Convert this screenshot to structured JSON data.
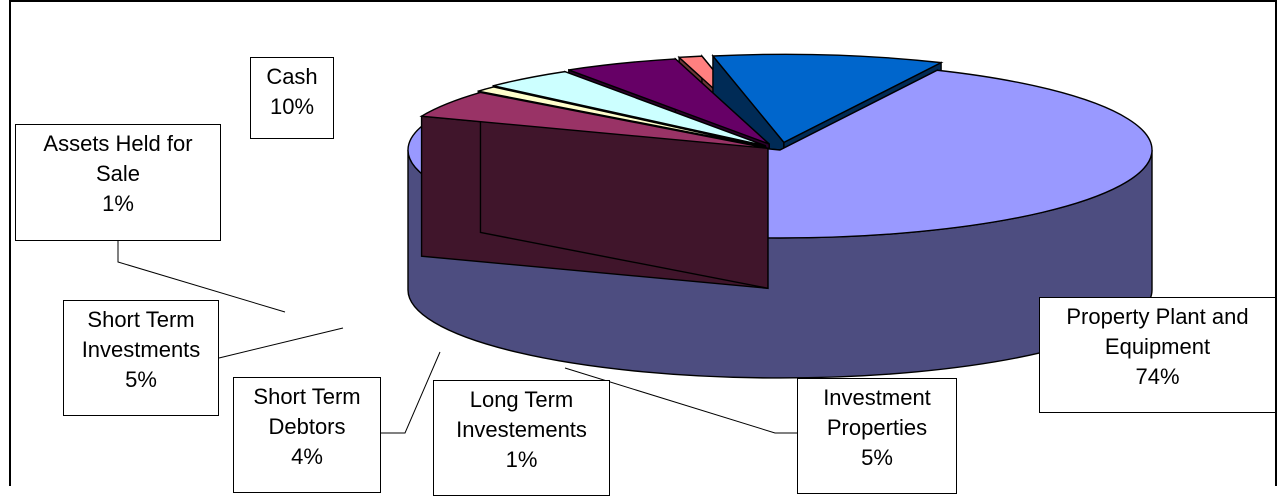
{
  "chart_data": {
    "type": "pie",
    "title": "",
    "slices": [
      {
        "key": "ppe",
        "name_lines": [
          "Property Plant and",
          "Equipment"
        ],
        "pct_label": "74%",
        "value": 74,
        "color": "#9999ff"
      },
      {
        "key": "investment_properties",
        "name_lines": [
          "Investment",
          "Properties"
        ],
        "pct_label": "5%",
        "value": 5,
        "color": "#993366"
      },
      {
        "key": "long_term_investments",
        "name_lines": [
          "Long Term",
          "Investements"
        ],
        "pct_label": "1%",
        "value": 1,
        "color": "#ffffcc"
      },
      {
        "key": "short_term_debtors",
        "name_lines": [
          "Short Term",
          "Debtors"
        ],
        "pct_label": "4%",
        "value": 4,
        "color": "#ccffff"
      },
      {
        "key": "short_term_investments",
        "name_lines": [
          "Short Term",
          "Investments"
        ],
        "pct_label": "5%",
        "value": 5,
        "color": "#660066"
      },
      {
        "key": "assets_held_for_sale",
        "name_lines": [
          "Assets Held for",
          "Sale"
        ],
        "pct_label": "1%",
        "value": 1,
        "color": "#ff8080"
      },
      {
        "key": "cash",
        "name_lines": [
          "Cash"
        ],
        "pct_label": "10%",
        "value": 10,
        "color": "#0066cc"
      }
    ]
  }
}
